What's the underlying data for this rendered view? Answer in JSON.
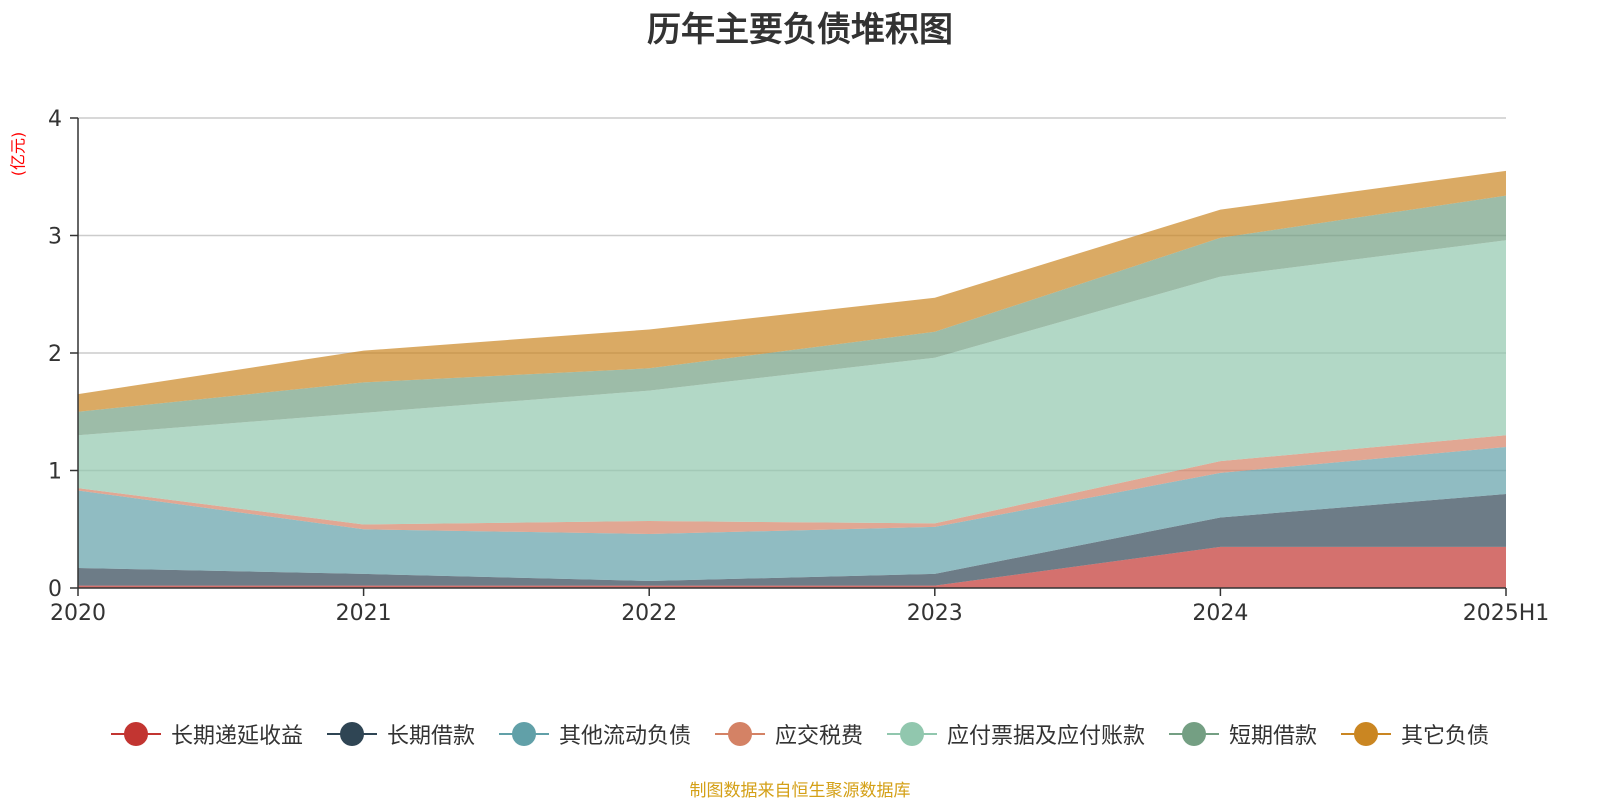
{
  "chart_data": {
    "type": "area",
    "stacked": true,
    "title": "历年主要负债堆积图",
    "ylabel": "(亿元)",
    "ylim": [
      0,
      4
    ],
    "yticks": [
      0,
      1,
      2,
      3,
      4
    ],
    "categories": [
      "2020",
      "2021",
      "2022",
      "2023",
      "2024",
      "2025H1"
    ],
    "grid": true,
    "legend_position": "bottom",
    "series": [
      {
        "name": "长期递延收益",
        "color": "#c23531",
        "values": [
          0.02,
          0.02,
          0.02,
          0.02,
          0.35,
          0.35
        ]
      },
      {
        "name": "长期借款",
        "color": "#2f4554",
        "values": [
          0.15,
          0.1,
          0.04,
          0.1,
          0.25,
          0.45
        ]
      },
      {
        "name": "其他流动负债",
        "color": "#61a0a8",
        "values": [
          0.66,
          0.38,
          0.4,
          0.4,
          0.38,
          0.4
        ]
      },
      {
        "name": "应交税费",
        "color": "#d48265",
        "values": [
          0.02,
          0.04,
          0.11,
          0.03,
          0.1,
          0.1
        ]
      },
      {
        "name": "应付票据及应付账款",
        "color": "#91c7ae",
        "values": [
          0.45,
          0.95,
          1.11,
          1.41,
          1.57,
          1.66
        ]
      },
      {
        "name": "短期借款",
        "color": "#749f83",
        "values": [
          0.2,
          0.26,
          0.19,
          0.22,
          0.33,
          0.38
        ]
      },
      {
        "name": "其它负债",
        "color": "#ca8622",
        "values": [
          0.15,
          0.27,
          0.33,
          0.29,
          0.24,
          0.21
        ]
      }
    ]
  },
  "footer": {
    "source_note": "制图数据来自恒生聚源数据库"
  }
}
